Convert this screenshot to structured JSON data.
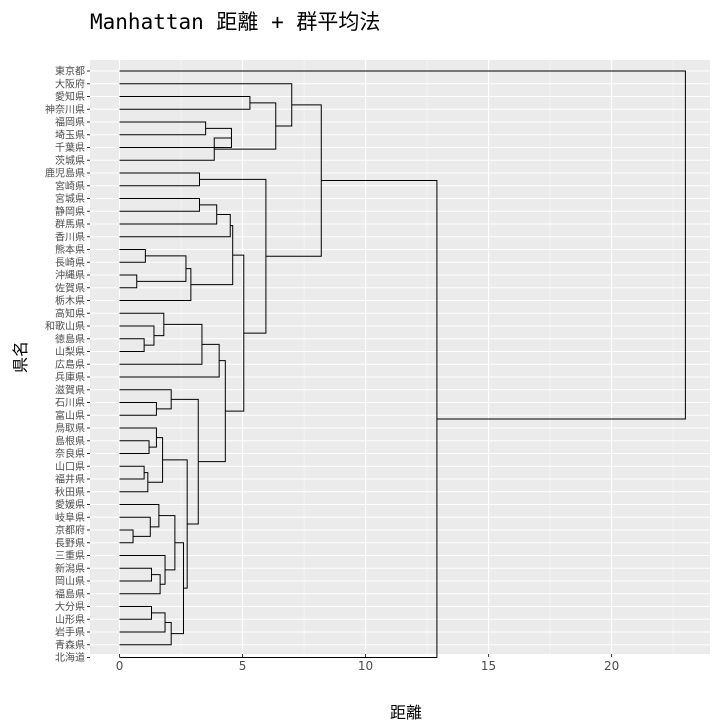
{
  "chart_data": {
    "type": "dendrogram",
    "title": "Manhattan 距離 + 群平均法",
    "xlabel": "距離",
    "ylabel": "県名",
    "xlim": [
      -1.2,
      24.0
    ],
    "x_ticks": [
      0,
      5,
      10,
      15,
      20
    ],
    "x_tick_labels": [
      "0",
      "5",
      "10",
      "15",
      "20"
    ],
    "grid": true,
    "leaves": [
      "東京都",
      "大阪府",
      "愛知県",
      "神奈川県",
      "福岡県",
      "埼玉県",
      "千葉県",
      "茨城県",
      "鹿児島県",
      "宮崎県",
      "宮城県",
      "静岡県",
      "群馬県",
      "香川県",
      "熊本県",
      "長崎県",
      "沖縄県",
      "佐賀県",
      "栃木県",
      "高知県",
      "和歌山県",
      "徳島県",
      "山梨県",
      "広島県",
      "兵庫県",
      "滋賀県",
      "石川県",
      "富山県",
      "鳥取県",
      "島根県",
      "奈良県",
      "山口県",
      "福井県",
      "秋田県",
      "愛媛県",
      "岐阜県",
      "京都府",
      "長野県",
      "三重県",
      "新潟県",
      "岡山県",
      "福島県",
      "大分県",
      "山形県",
      "岩手県",
      "青森県",
      "北海道"
    ],
    "merges": [
      {
        "id": "M1",
        "left": "山口県",
        "right": "福井県",
        "height": 1.0
      },
      {
        "id": "M2",
        "left": "京都府",
        "right": "長野県",
        "height": 0.55
      },
      {
        "id": "M3",
        "left": "大分県",
        "right": "山形県",
        "height": 1.3
      },
      {
        "id": "M4",
        "left": "新潟県",
        "right": "岡山県",
        "height": 1.3
      },
      {
        "id": "M5",
        "left": "沖縄県",
        "right": "佐賀県",
        "height": 0.7
      },
      {
        "id": "M6",
        "left": "熊本県",
        "right": "長崎県",
        "height": 1.05
      },
      {
        "id": "M7",
        "left": "徳島県",
        "right": "山梨県",
        "height": 1.0
      },
      {
        "id": "M8",
        "left": "M1",
        "right": "秋田県",
        "height": 1.15
      },
      {
        "id": "M9",
        "left": "島根県",
        "right": "奈良県",
        "height": 1.2
      },
      {
        "id": "M10",
        "left": "和歌山県",
        "right": "M7",
        "height": 1.4
      },
      {
        "id": "M11",
        "left": "石川県",
        "right": "富山県",
        "height": 1.5
      },
      {
        "id": "M12",
        "left": "岐阜県",
        "right": "M2",
        "height": 1.25
      },
      {
        "id": "M13",
        "left": "M4",
        "right": "福島県",
        "height": 1.65
      },
      {
        "id": "M14",
        "left": "鳥取県",
        "right": "M9",
        "height": 1.5
      },
      {
        "id": "M15",
        "left": "愛媛県",
        "right": "M12",
        "height": 1.6
      },
      {
        "id": "M16",
        "left": "M3",
        "right": "岩手県",
        "height": 1.85
      },
      {
        "id": "M17",
        "left": "高知県",
        "right": "M10",
        "height": 1.8
      },
      {
        "id": "M18",
        "left": "M14",
        "right": "M8",
        "height": 1.75
      },
      {
        "id": "M19",
        "left": "M16",
        "right": "青森県",
        "height": 2.1
      },
      {
        "id": "M20",
        "left": "滋賀県",
        "right": "M11",
        "height": 2.1
      },
      {
        "id": "M21",
        "left": "三重県",
        "right": "M13",
        "height": 1.85
      },
      {
        "id": "M22",
        "left": "M15",
        "right": "M21",
        "height": 2.25
      },
      {
        "id": "M23",
        "left": "M22",
        "right": "M19",
        "height": 2.6
      },
      {
        "id": "M24",
        "left": "M18",
        "right": "M23",
        "height": 2.75
      },
      {
        "id": "M25",
        "left": "M6",
        "right": "M5",
        "height": 2.7
      },
      {
        "id": "M26",
        "left": "M25",
        "right": "栃木県",
        "height": 2.9
      },
      {
        "id": "M27",
        "left": "M20",
        "right": "M24",
        "height": 3.2
      },
      {
        "id": "M28",
        "left": "鹿児島県",
        "right": "宮崎県",
        "height": 3.25
      },
      {
        "id": "M29",
        "left": "宮城県",
        "right": "静岡県",
        "height": 3.25
      },
      {
        "id": "M30",
        "left": "M17",
        "right": "広島県",
        "height": 3.35
      },
      {
        "id": "M31",
        "left": "M29",
        "right": "群馬県",
        "height": 3.95
      },
      {
        "id": "M32",
        "left": "M30",
        "right": "兵庫県",
        "height": 4.05
      },
      {
        "id": "M33",
        "left": "M32",
        "right": "M27",
        "height": 4.3
      },
      {
        "id": "M34",
        "left": "M31",
        "right": "香川県",
        "height": 4.5
      },
      {
        "id": "M35",
        "left": "M34",
        "right": "M26",
        "height": 4.6
      },
      {
        "id": "M36",
        "left": "M35",
        "right": "M33",
        "height": 5.05
      },
      {
        "id": "M37",
        "left": "M28",
        "right": "M36",
        "height": 5.95
      },
      {
        "id": "M38",
        "left": "福岡県",
        "right": "埼玉県",
        "height": 3.5
      },
      {
        "id": "M39",
        "left": "M38",
        "right": "千葉県",
        "height": 4.55
      },
      {
        "id": "M40",
        "left": "M39",
        "right": "茨城県",
        "height": 3.85
      },
      {
        "id": "M41",
        "left": "愛知県",
        "right": "神奈川県",
        "height": 5.3
      },
      {
        "id": "M42",
        "left": "M41",
        "right": "M40",
        "height": 6.35
      },
      {
        "id": "M43",
        "left": "大阪府",
        "right": "M42",
        "height": 7.0
      },
      {
        "id": "M44",
        "left": "M43",
        "right": "M37",
        "height": 8.2
      },
      {
        "id": "M45",
        "left": "M44",
        "right": "北海道",
        "height": 12.9
      },
      {
        "id": "M46",
        "left": "東京都",
        "right": "M45",
        "height": 23.0
      }
    ]
  },
  "colors": {
    "panel_background": "#ebebeb",
    "grid_major": "#ffffff",
    "line": "#000000",
    "tick_text": "#4d4d4d"
  }
}
